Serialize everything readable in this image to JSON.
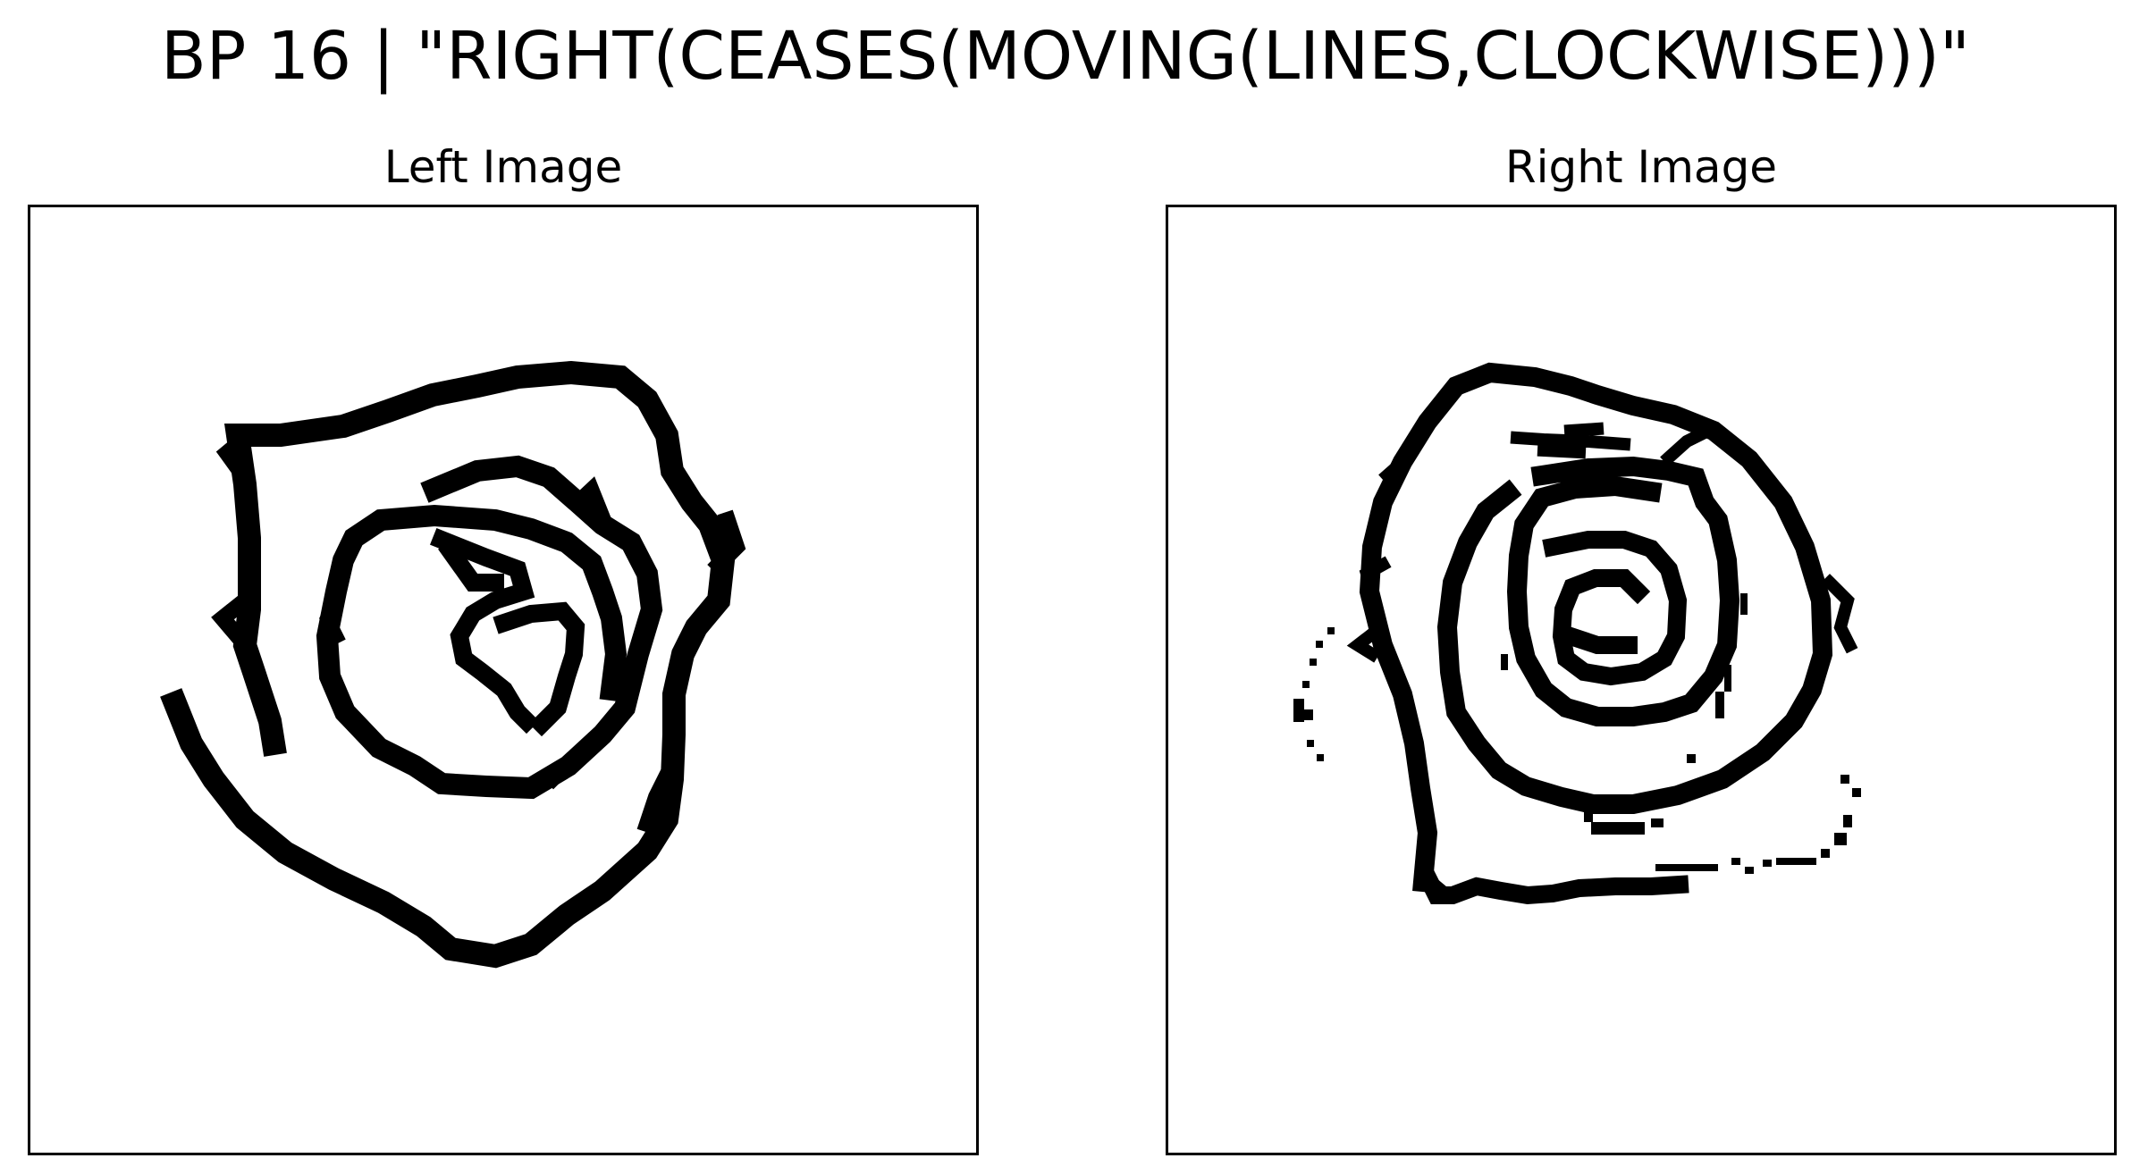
{
  "title": "BP 16 | \"RIGHT(CEASES(MOVING(LINES,CLOCKWISE)))\"",
  "panels": [
    {
      "title": "Left Image",
      "content": "spiral-drawing"
    },
    {
      "title": "Right Image",
      "content": "spiral-drawing"
    }
  ],
  "colors": {
    "ink": "#000000",
    "background": "#ffffff"
  }
}
